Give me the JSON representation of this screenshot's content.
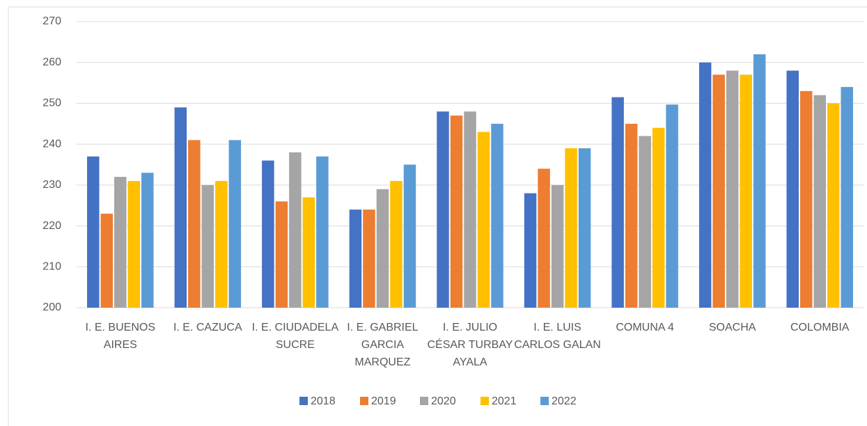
{
  "chart_data": {
    "type": "bar",
    "categories": [
      "I. E. BUENOS AIRES",
      "I. E. CAZUCA",
      "I. E. CIUDADELA SUCRE",
      "I. E. GABRIEL GARCIA MARQUEZ",
      "I. E. JULIO CÉSAR TURBAY AYALA",
      "I. E. LUIS CARLOS GALAN",
      "COMUNA 4",
      "SOACHA",
      "COLOMBIA"
    ],
    "series": [
      {
        "name": "2018",
        "color": "#4472c4",
        "values": [
          237,
          249,
          236,
          224,
          248,
          228,
          251.5,
          260,
          258
        ]
      },
      {
        "name": "2019",
        "color": "#ed7d31",
        "values": [
          223,
          241,
          226,
          224,
          247,
          234,
          245,
          257,
          253
        ]
      },
      {
        "name": "2020",
        "color": "#a5a5a5",
        "values": [
          232,
          230,
          238,
          229,
          248,
          230,
          242,
          258,
          252
        ]
      },
      {
        "name": "2021",
        "color": "#ffc000",
        "values": [
          231,
          231,
          227,
          231,
          243,
          239,
          244,
          257,
          250
        ]
      },
      {
        "name": "2022",
        "color": "#5b9bd5",
        "values": [
          233,
          241,
          237,
          235,
          245,
          239,
          249.7,
          262,
          254
        ]
      }
    ],
    "ylim": [
      200,
      270
    ],
    "yticks": [
      200,
      210,
      220,
      230,
      240,
      250,
      260,
      270
    ],
    "grid": true,
    "legend": "bottom"
  }
}
